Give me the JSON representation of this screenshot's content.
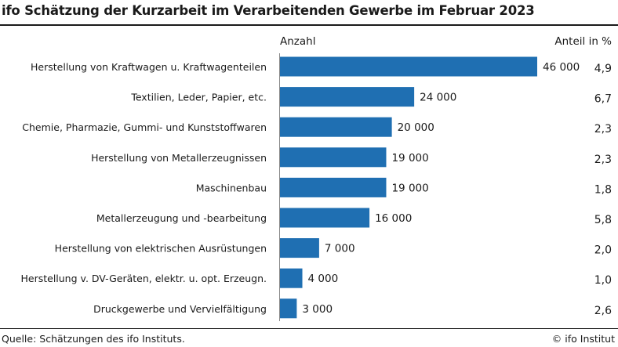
{
  "header": {
    "title": "ifo Schätzung der Kurzarbeit im Verarbeitenden Gewerbe im Februar 2023"
  },
  "footer": {
    "source": "Quelle: Schätzungen des ifo Instituts.",
    "copyright": "© ifo Institut"
  },
  "chart_data": {
    "type": "bar",
    "orientation": "horizontal",
    "title": "ifo Schätzung der Kurzarbeit im Verarbeitenden Gewerbe im Februar 2023",
    "column_headers": {
      "values": "Anzahl",
      "share": "Anteil in %"
    },
    "categories": [
      "Herstellung von Kraftwagen u. Kraftwagenteilen",
      "Textilien, Leder, Papier, etc.",
      "Chemie, Pharmazie, Gummi- und Kunststoffwaren",
      "Herstellung von Metallerzeugnissen",
      "Maschinenbau",
      "Metallerzeugung und -bearbeitung",
      "Herstellung von elektrischen Ausrüstungen",
      "Herstellung v. DV-Geräten, elektr. u. opt. Erzeugn.",
      "Druckgewerbe und Vervielfältigung"
    ],
    "values": [
      46000,
      24000,
      20000,
      19000,
      19000,
      16000,
      7000,
      4000,
      3000
    ],
    "value_labels": [
      "46 000",
      "24 000",
      "20 000",
      "19 000",
      "19 000",
      "16 000",
      "7 000",
      "4 000",
      "3 000"
    ],
    "share_percent": [
      "4,9",
      "6,7",
      "2,3",
      "2,3",
      "1,8",
      "5,8",
      "2,0",
      "1,0",
      "2,6"
    ],
    "bar_color": "#1f6fb2",
    "xlim": [
      0,
      46000
    ]
  }
}
